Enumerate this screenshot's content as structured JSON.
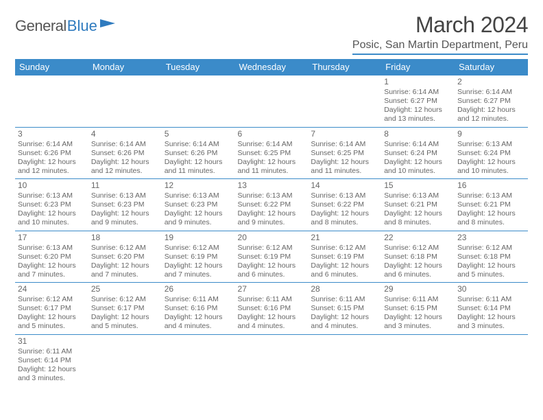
{
  "logo": {
    "part1": "General",
    "part2": "Blue"
  },
  "title": "March 2024",
  "location": "Posic, San Martin Department, Peru",
  "colors": {
    "header_bg": "#3b8bc9",
    "header_text": "#ffffff",
    "border": "#3b8bc9",
    "body_text": "#555555",
    "logo_blue": "#2f7bbf"
  },
  "typography": {
    "title_fontsize": 32,
    "location_fontsize": 16,
    "header_fontsize": 13,
    "daynum_fontsize": 12,
    "detail_fontsize": 10.5
  },
  "weekday_labels": [
    "Sunday",
    "Monday",
    "Tuesday",
    "Wednesday",
    "Thursday",
    "Friday",
    "Saturday"
  ],
  "weeks": [
    [
      null,
      null,
      null,
      null,
      null,
      {
        "d": "1",
        "sr": "Sunrise: 6:14 AM",
        "ss": "Sunset: 6:27 PM",
        "dl1": "Daylight: 12 hours",
        "dl2": "and 13 minutes."
      },
      {
        "d": "2",
        "sr": "Sunrise: 6:14 AM",
        "ss": "Sunset: 6:27 PM",
        "dl1": "Daylight: 12 hours",
        "dl2": "and 12 minutes."
      }
    ],
    [
      {
        "d": "3",
        "sr": "Sunrise: 6:14 AM",
        "ss": "Sunset: 6:26 PM",
        "dl1": "Daylight: 12 hours",
        "dl2": "and 12 minutes."
      },
      {
        "d": "4",
        "sr": "Sunrise: 6:14 AM",
        "ss": "Sunset: 6:26 PM",
        "dl1": "Daylight: 12 hours",
        "dl2": "and 12 minutes."
      },
      {
        "d": "5",
        "sr": "Sunrise: 6:14 AM",
        "ss": "Sunset: 6:26 PM",
        "dl1": "Daylight: 12 hours",
        "dl2": "and 11 minutes."
      },
      {
        "d": "6",
        "sr": "Sunrise: 6:14 AM",
        "ss": "Sunset: 6:25 PM",
        "dl1": "Daylight: 12 hours",
        "dl2": "and 11 minutes."
      },
      {
        "d": "7",
        "sr": "Sunrise: 6:14 AM",
        "ss": "Sunset: 6:25 PM",
        "dl1": "Daylight: 12 hours",
        "dl2": "and 11 minutes."
      },
      {
        "d": "8",
        "sr": "Sunrise: 6:14 AM",
        "ss": "Sunset: 6:24 PM",
        "dl1": "Daylight: 12 hours",
        "dl2": "and 10 minutes."
      },
      {
        "d": "9",
        "sr": "Sunrise: 6:13 AM",
        "ss": "Sunset: 6:24 PM",
        "dl1": "Daylight: 12 hours",
        "dl2": "and 10 minutes."
      }
    ],
    [
      {
        "d": "10",
        "sr": "Sunrise: 6:13 AM",
        "ss": "Sunset: 6:23 PM",
        "dl1": "Daylight: 12 hours",
        "dl2": "and 10 minutes."
      },
      {
        "d": "11",
        "sr": "Sunrise: 6:13 AM",
        "ss": "Sunset: 6:23 PM",
        "dl1": "Daylight: 12 hours",
        "dl2": "and 9 minutes."
      },
      {
        "d": "12",
        "sr": "Sunrise: 6:13 AM",
        "ss": "Sunset: 6:23 PM",
        "dl1": "Daylight: 12 hours",
        "dl2": "and 9 minutes."
      },
      {
        "d": "13",
        "sr": "Sunrise: 6:13 AM",
        "ss": "Sunset: 6:22 PM",
        "dl1": "Daylight: 12 hours",
        "dl2": "and 9 minutes."
      },
      {
        "d": "14",
        "sr": "Sunrise: 6:13 AM",
        "ss": "Sunset: 6:22 PM",
        "dl1": "Daylight: 12 hours",
        "dl2": "and 8 minutes."
      },
      {
        "d": "15",
        "sr": "Sunrise: 6:13 AM",
        "ss": "Sunset: 6:21 PM",
        "dl1": "Daylight: 12 hours",
        "dl2": "and 8 minutes."
      },
      {
        "d": "16",
        "sr": "Sunrise: 6:13 AM",
        "ss": "Sunset: 6:21 PM",
        "dl1": "Daylight: 12 hours",
        "dl2": "and 8 minutes."
      }
    ],
    [
      {
        "d": "17",
        "sr": "Sunrise: 6:13 AM",
        "ss": "Sunset: 6:20 PM",
        "dl1": "Daylight: 12 hours",
        "dl2": "and 7 minutes."
      },
      {
        "d": "18",
        "sr": "Sunrise: 6:12 AM",
        "ss": "Sunset: 6:20 PM",
        "dl1": "Daylight: 12 hours",
        "dl2": "and 7 minutes."
      },
      {
        "d": "19",
        "sr": "Sunrise: 6:12 AM",
        "ss": "Sunset: 6:19 PM",
        "dl1": "Daylight: 12 hours",
        "dl2": "and 7 minutes."
      },
      {
        "d": "20",
        "sr": "Sunrise: 6:12 AM",
        "ss": "Sunset: 6:19 PM",
        "dl1": "Daylight: 12 hours",
        "dl2": "and 6 minutes."
      },
      {
        "d": "21",
        "sr": "Sunrise: 6:12 AM",
        "ss": "Sunset: 6:19 PM",
        "dl1": "Daylight: 12 hours",
        "dl2": "and 6 minutes."
      },
      {
        "d": "22",
        "sr": "Sunrise: 6:12 AM",
        "ss": "Sunset: 6:18 PM",
        "dl1": "Daylight: 12 hours",
        "dl2": "and 6 minutes."
      },
      {
        "d": "23",
        "sr": "Sunrise: 6:12 AM",
        "ss": "Sunset: 6:18 PM",
        "dl1": "Daylight: 12 hours",
        "dl2": "and 5 minutes."
      }
    ],
    [
      {
        "d": "24",
        "sr": "Sunrise: 6:12 AM",
        "ss": "Sunset: 6:17 PM",
        "dl1": "Daylight: 12 hours",
        "dl2": "and 5 minutes."
      },
      {
        "d": "25",
        "sr": "Sunrise: 6:12 AM",
        "ss": "Sunset: 6:17 PM",
        "dl1": "Daylight: 12 hours",
        "dl2": "and 5 minutes."
      },
      {
        "d": "26",
        "sr": "Sunrise: 6:11 AM",
        "ss": "Sunset: 6:16 PM",
        "dl1": "Daylight: 12 hours",
        "dl2": "and 4 minutes."
      },
      {
        "d": "27",
        "sr": "Sunrise: 6:11 AM",
        "ss": "Sunset: 6:16 PM",
        "dl1": "Daylight: 12 hours",
        "dl2": "and 4 minutes."
      },
      {
        "d": "28",
        "sr": "Sunrise: 6:11 AM",
        "ss": "Sunset: 6:15 PM",
        "dl1": "Daylight: 12 hours",
        "dl2": "and 4 minutes."
      },
      {
        "d": "29",
        "sr": "Sunrise: 6:11 AM",
        "ss": "Sunset: 6:15 PM",
        "dl1": "Daylight: 12 hours",
        "dl2": "and 3 minutes."
      },
      {
        "d": "30",
        "sr": "Sunrise: 6:11 AM",
        "ss": "Sunset: 6:14 PM",
        "dl1": "Daylight: 12 hours",
        "dl2": "and 3 minutes."
      }
    ],
    [
      {
        "d": "31",
        "sr": "Sunrise: 6:11 AM",
        "ss": "Sunset: 6:14 PM",
        "dl1": "Daylight: 12 hours",
        "dl2": "and 3 minutes."
      },
      null,
      null,
      null,
      null,
      null,
      null
    ]
  ]
}
